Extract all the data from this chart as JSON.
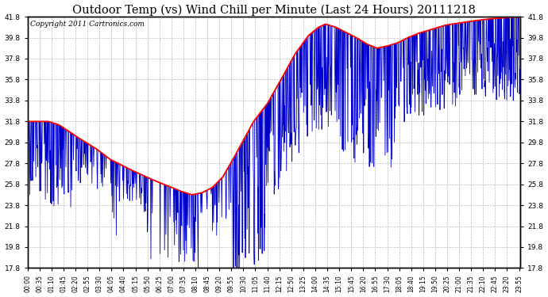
{
  "title": "Outdoor Temp (vs) Wind Chill per Minute (Last 24 Hours) 20111218",
  "copyright_text": "Copyright 2011 Cartronics.com",
  "ylim": [
    17.8,
    41.8
  ],
  "yticks": [
    17.8,
    19.8,
    21.8,
    23.8,
    25.8,
    27.8,
    29.8,
    31.8,
    33.8,
    35.8,
    37.8,
    39.8,
    41.8
  ],
  "total_minutes": 1440,
  "background_color": "#ffffff",
  "plot_bg_color": "#ffffff",
  "grid_color": "#bbbbbb",
  "blue_color": "#0000cc",
  "red_color": "#ff0000",
  "title_fontsize": 10.5,
  "copyright_fontsize": 6.5,
  "tick_fontsize": 6.5,
  "xtick_fontsize": 5.5
}
